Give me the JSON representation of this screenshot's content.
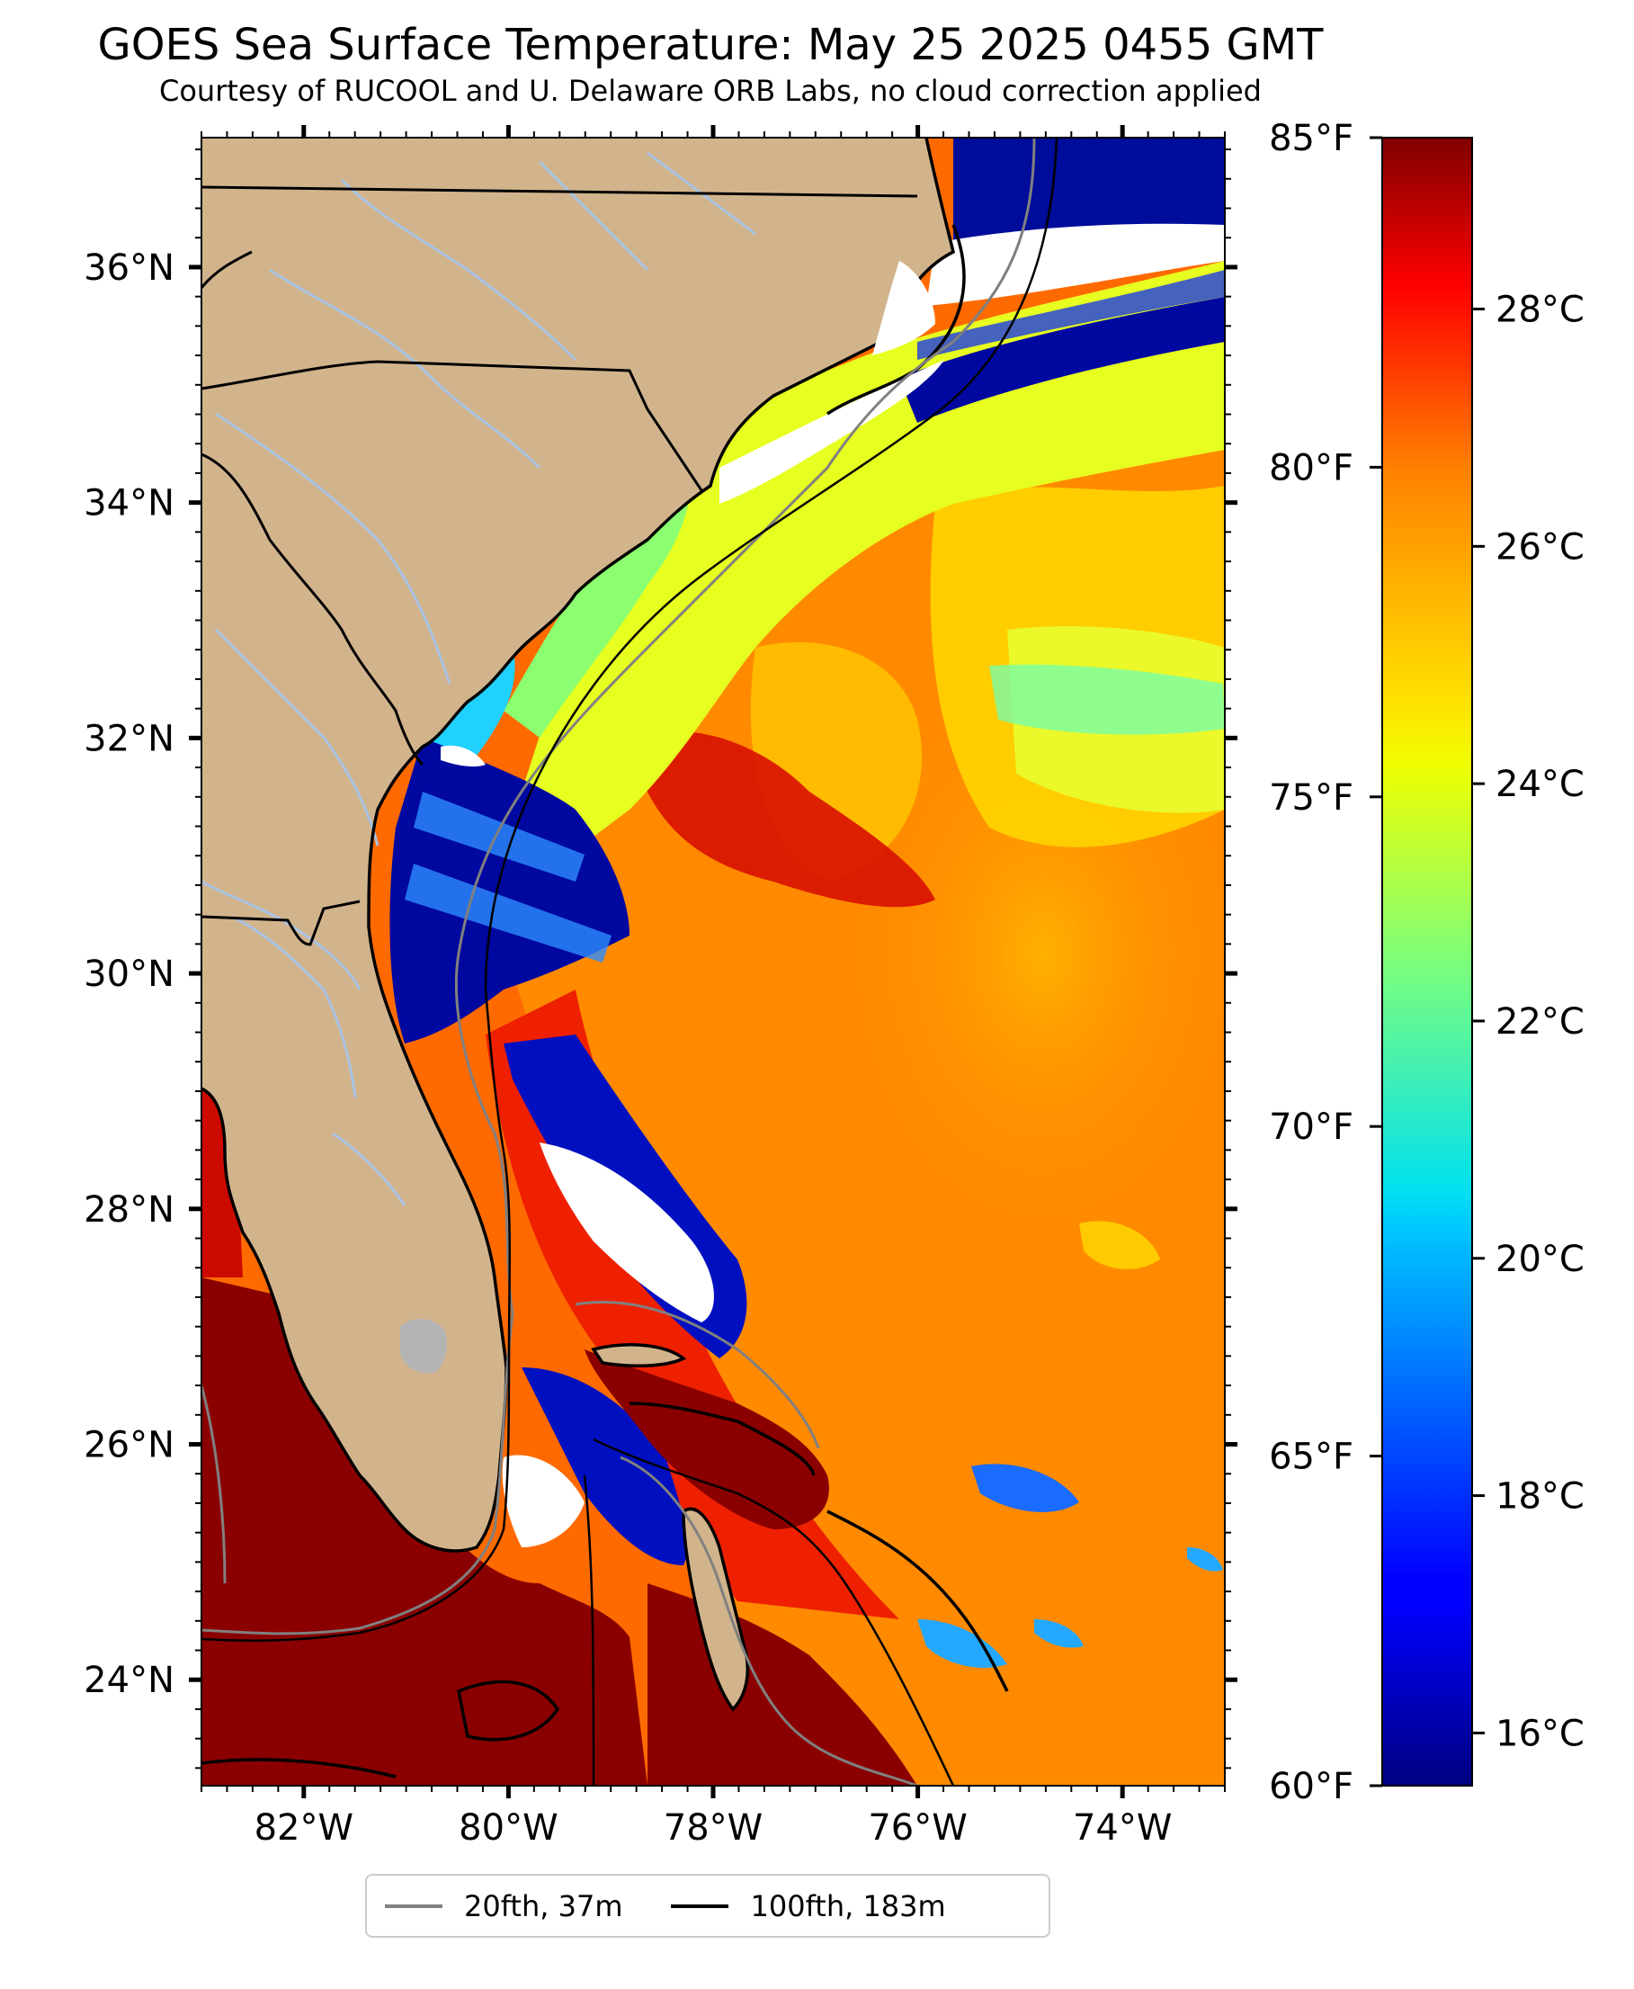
{
  "title": "GOES Sea Surface Temperature: May 25 2025 0455 GMT",
  "subtitle": "Courtesy of RUCOOL and U. Delaware ORB Labs, no cloud correction applied",
  "map": {
    "lat_range": [
      23.1,
      37.1
    ],
    "lon_range": [
      -83.0,
      -73.0
    ],
    "lat_ticks": [
      "24°N",
      "26°N",
      "28°N",
      "30°N",
      "32°N",
      "34°N",
      "36°N"
    ],
    "lon_ticks": [
      "82°W",
      "80°W",
      "78°W",
      "76°W",
      "74°W"
    ],
    "colors": {
      "land": "#d2b48c",
      "cloud": "#ffffff",
      "coast": "#000000",
      "state_border": "#000000",
      "river": "#a9c3e3",
      "contour_20fth": "#808080",
      "contour_100fth": "#000000"
    }
  },
  "colorbar": {
    "f_ticks": [
      "60°F",
      "65°F",
      "70°F",
      "75°F",
      "80°F",
      "85°F"
    ],
    "c_ticks": [
      "16°C",
      "18°C",
      "20°C",
      "22°C",
      "24°C",
      "26°C",
      "28°C"
    ],
    "colormap": "jet",
    "range_f": [
      60,
      85
    ]
  },
  "legend": {
    "item1_label": "20fth, 37m",
    "item1_color": "#808080",
    "item2_label": "100fth, 183m",
    "item2_color": "#000000"
  }
}
